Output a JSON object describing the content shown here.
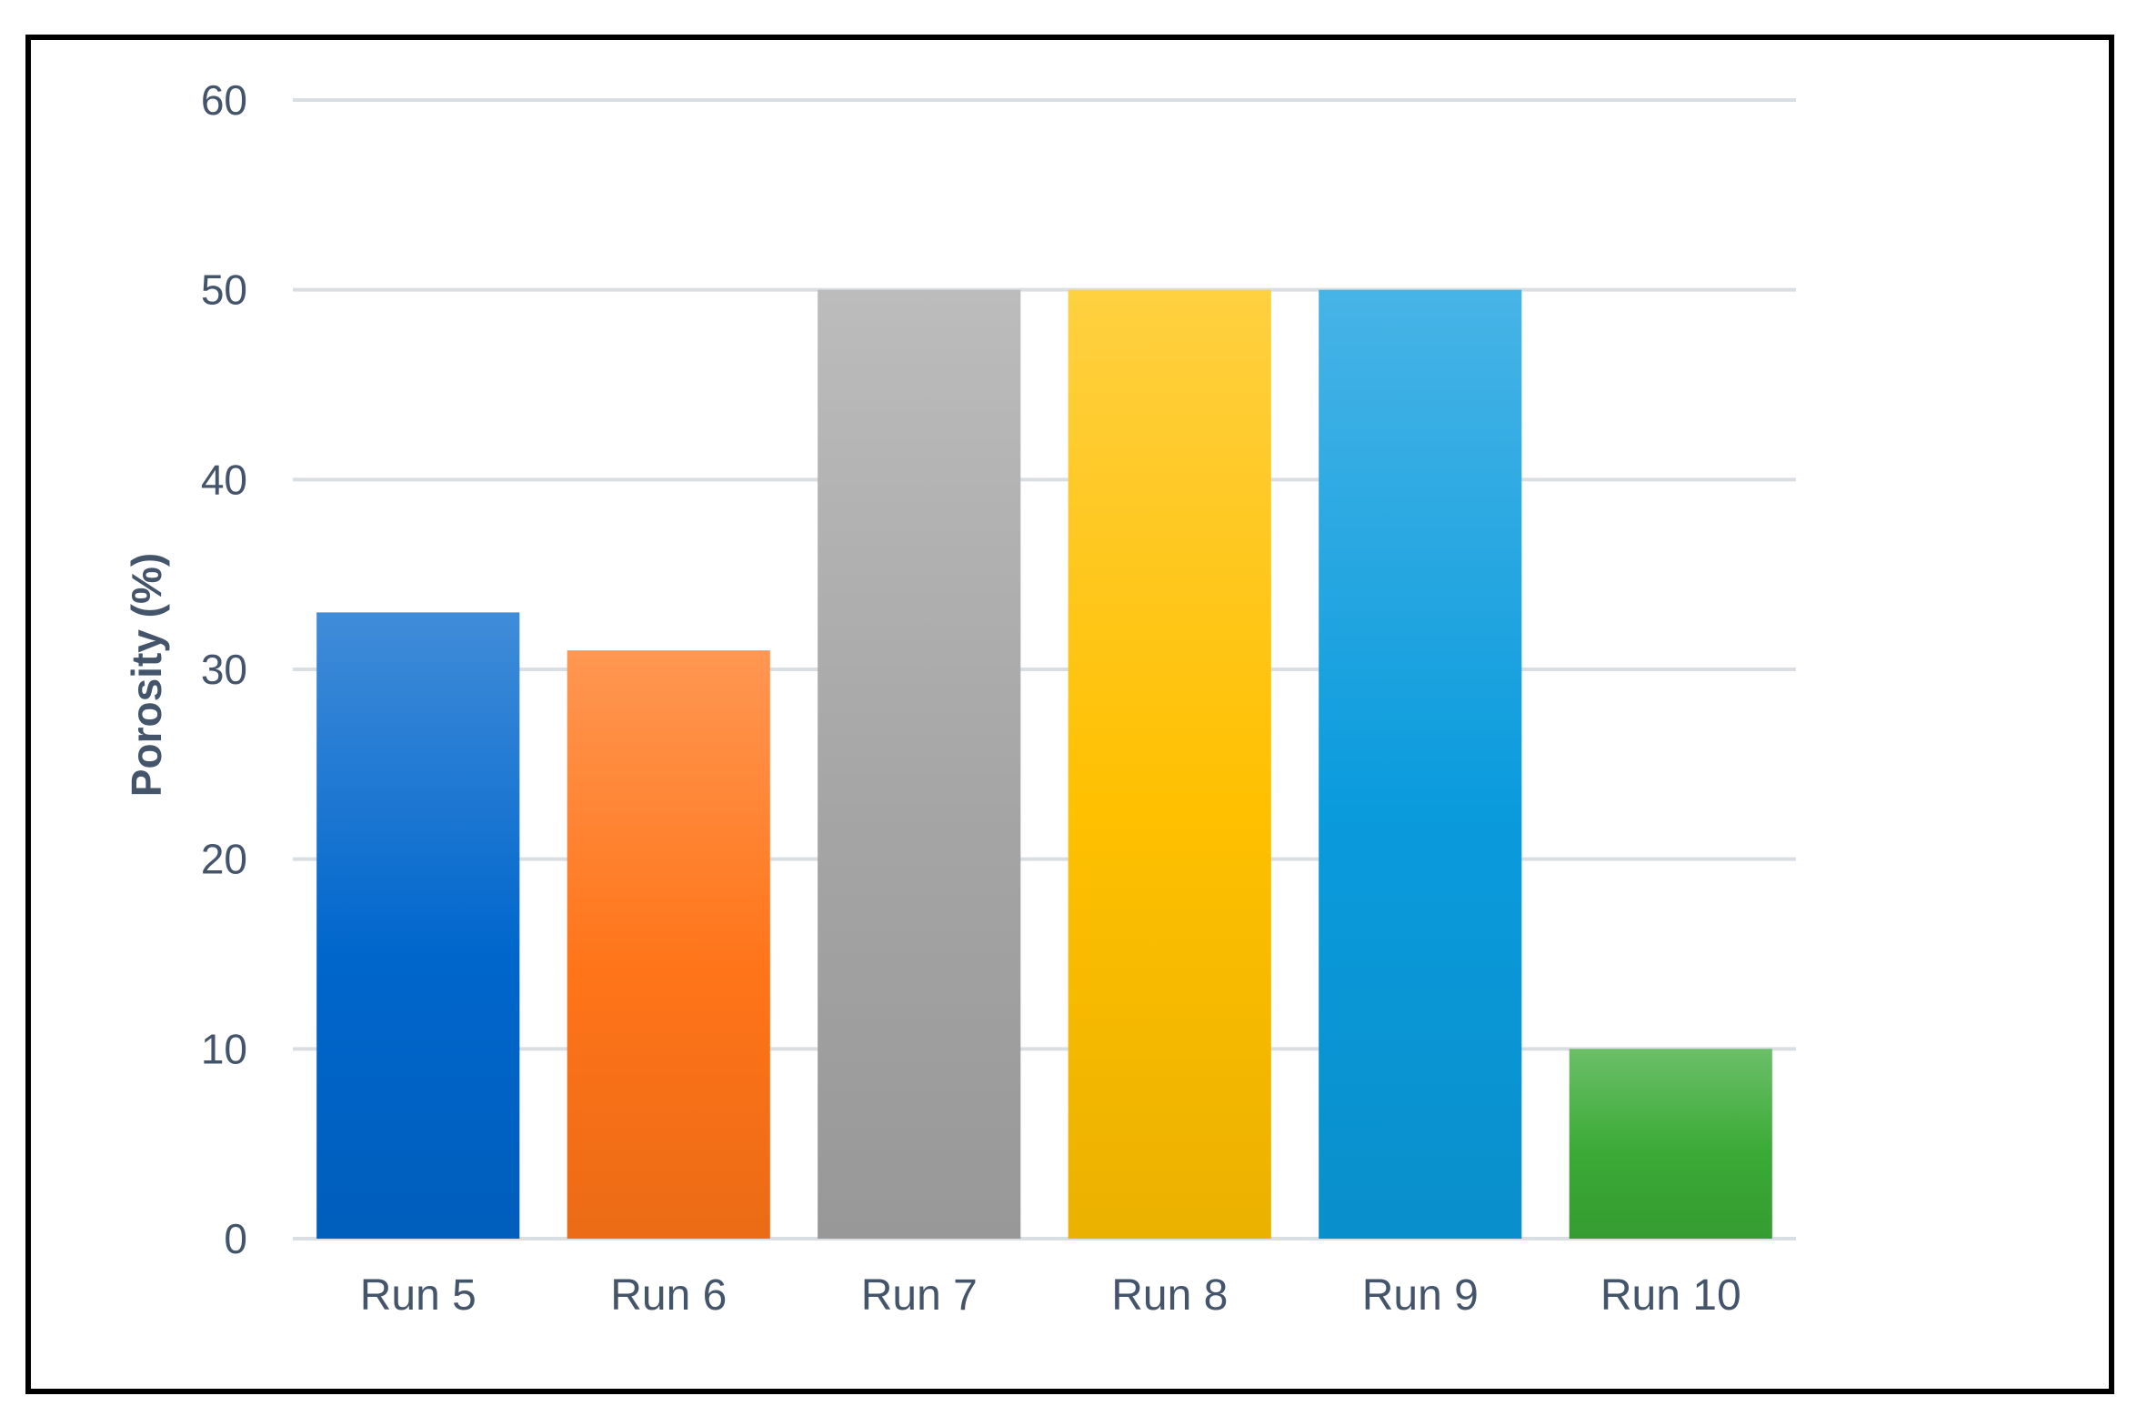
{
  "chart_data": {
    "type": "bar",
    "title": "",
    "xlabel": "",
    "ylabel": "Porosity (%)",
    "ylim": [
      0,
      60
    ],
    "yticks": [
      0,
      10,
      20,
      30,
      40,
      50,
      60
    ],
    "grid": true,
    "legend": "none",
    "categories": [
      "Run 5",
      "Run 6",
      "Run 7",
      "Run 8",
      "Run 9",
      "Run 10"
    ],
    "values": [
      33,
      31,
      50,
      50,
      50,
      10
    ],
    "colors": [
      "#0066CC",
      "#FF7418",
      "#A5A5A5",
      "#FFC000",
      "#0A9BDD",
      "#3AAA35"
    ]
  }
}
